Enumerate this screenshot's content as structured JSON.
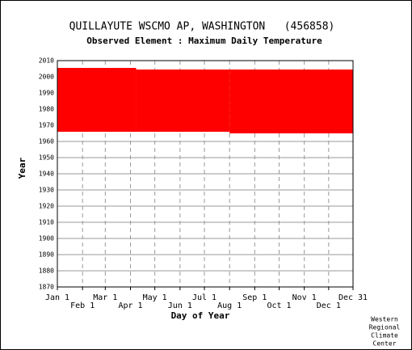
{
  "chart_data": {
    "type": "range-bar",
    "title": "QUILLAYUTE WSCMO AP, WASHINGTON   (456858)",
    "subtitle": "Observed Element : Maximum Daily Temperature",
    "x_label": "Day of Year",
    "y_label": "Year",
    "credit": [
      "Western",
      "Regional",
      "Climate",
      "Center"
    ],
    "color": "#ff0000",
    "segments": [
      {
        "start": 1,
        "end": 98,
        "low": 1966,
        "high": 2005.5
      },
      {
        "start": 98,
        "end": 213,
        "low": 1966,
        "high": 2004.5
      },
      {
        "start": 213,
        "end": 365,
        "low": 1965,
        "high": 2004.5
      }
    ],
    "xlim": [
      1,
      365
    ],
    "xticks": [
      {
        "value": 1,
        "label": "Jan 1"
      },
      {
        "value": 32,
        "label": "Feb 1"
      },
      {
        "value": 60,
        "label": "Mar 1"
      },
      {
        "value": 91,
        "label": "Apr 1"
      },
      {
        "value": 121,
        "label": "May 1"
      },
      {
        "value": 152,
        "label": "Jun 1"
      },
      {
        "value": 182,
        "label": "Jul 1"
      },
      {
        "value": 213,
        "label": "Aug 1"
      },
      {
        "value": 244,
        "label": "Sep 1"
      },
      {
        "value": 274,
        "label": "Oct 1"
      },
      {
        "value": 305,
        "label": "Nov 1"
      },
      {
        "value": 335,
        "label": "Dec 1"
      },
      {
        "value": 365,
        "label": "Dec 31"
      }
    ],
    "ylim": [
      1870,
      2010
    ],
    "yticks": [
      1870,
      1880,
      1890,
      1900,
      1910,
      1920,
      1930,
      1940,
      1950,
      1960,
      1970,
      1980,
      1990,
      2000,
      2010
    ],
    "grid": true
  }
}
